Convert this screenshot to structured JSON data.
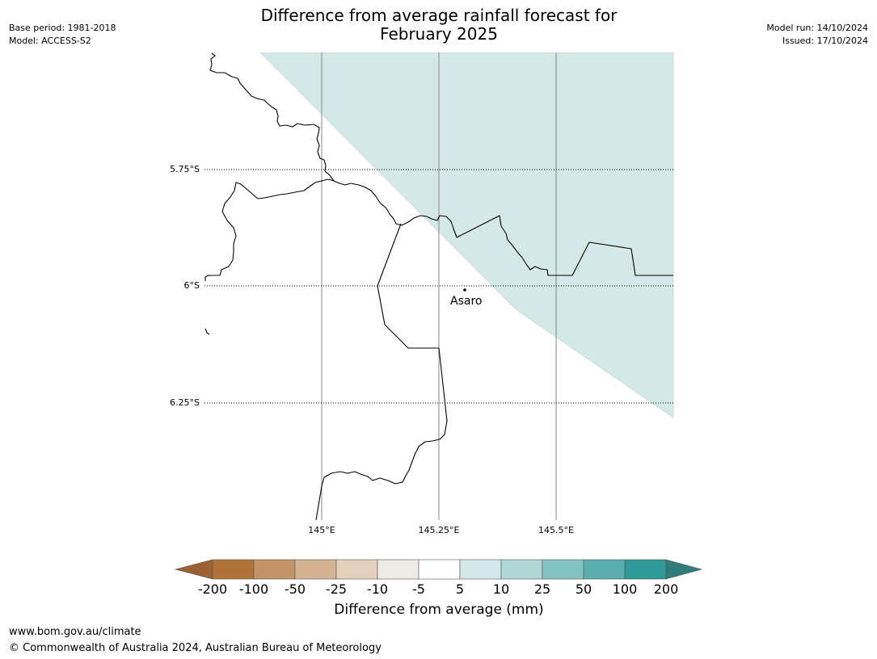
{
  "header": {
    "title_line1": "Difference from average rainfall forecast for",
    "title_line2": "February 2025",
    "base_period": "Base period: 1981-2018",
    "model": "Model: ACCESS-S2",
    "model_run": "Model run: 14/10/2024",
    "issued": "Issued: 17/10/2024"
  },
  "map": {
    "latitude_labels": [
      "5.75°S",
      "6°S",
      "6.25°S"
    ],
    "longitude_labels": [
      "145°E",
      "145.25°E",
      "145.5°E"
    ],
    "place": {
      "name": "Asaro"
    },
    "forecast_fill_color": "#d4e9e7"
  },
  "colorbar": {
    "ticks": [
      "-200",
      "-100",
      "-50",
      "-25",
      "-10",
      "-5",
      "5",
      "10",
      "25",
      "50",
      "100",
      "200"
    ],
    "colors": [
      "#9c6130",
      "#b07438",
      "#c39468",
      "#d4b394",
      "#e4d0bd",
      "#eeebe7",
      "#ffffff",
      "#d4e9e7",
      "#b0d6d5",
      "#84c2c0",
      "#5aaeac",
      "#2f9a97",
      "#2e7d7a"
    ],
    "label": "Difference from average (mm)"
  },
  "footer": {
    "url": "www.bom.gov.au/climate",
    "copyright": "© Commonwealth of Australia 2024, Australian Bureau of Meteorology"
  }
}
